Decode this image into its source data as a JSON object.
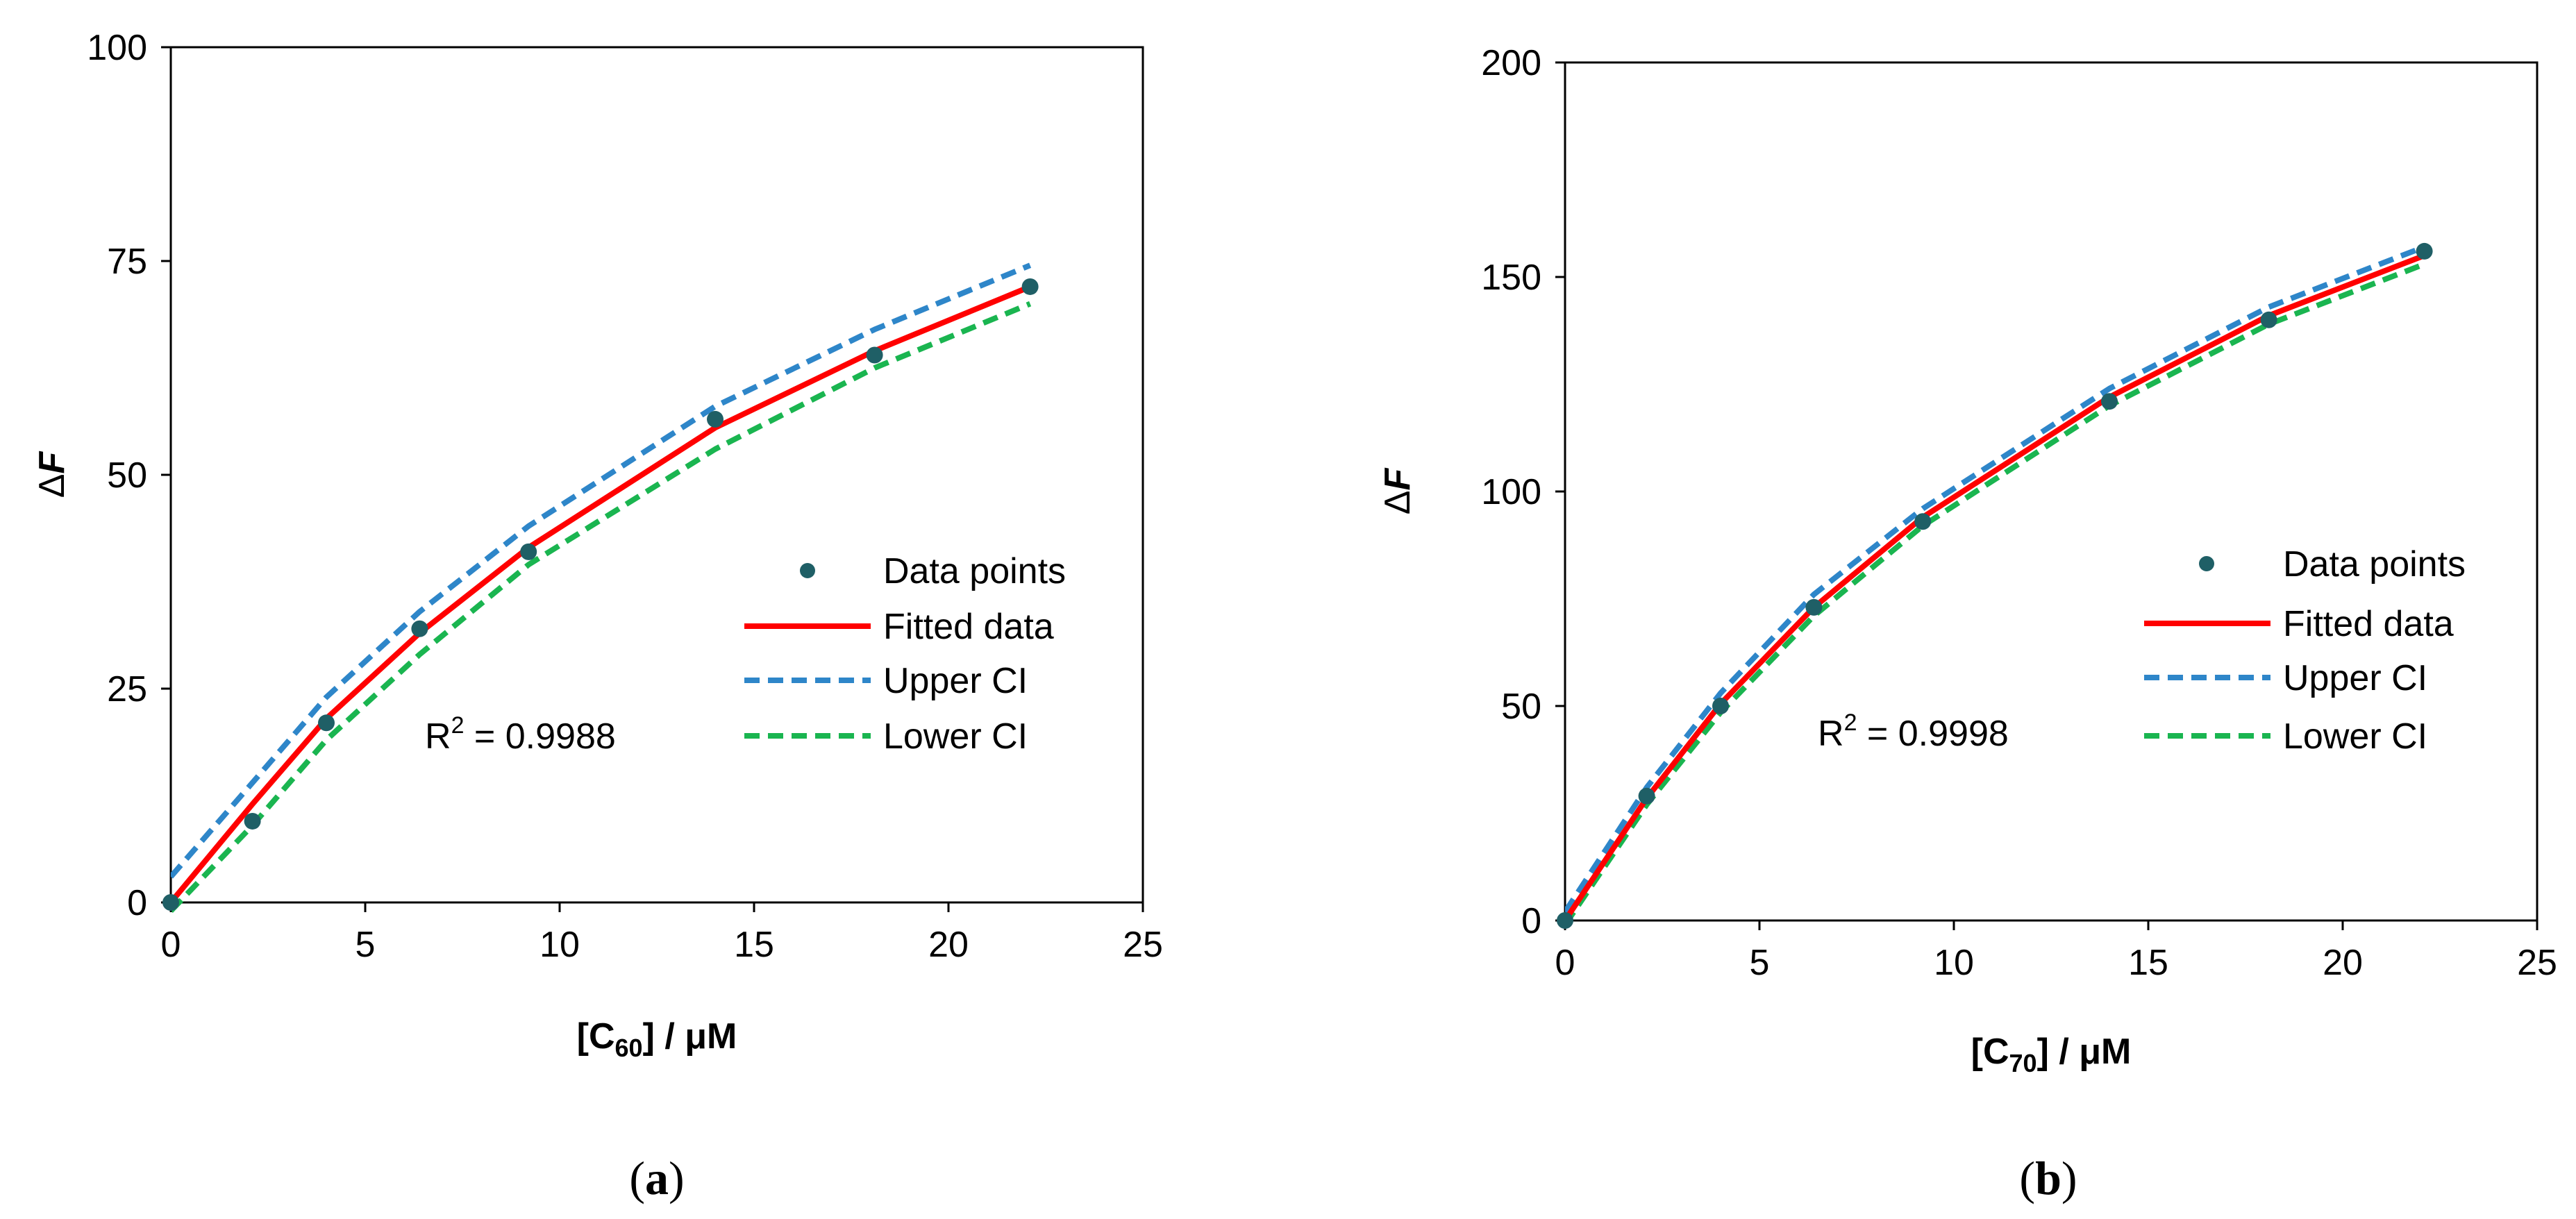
{
  "chart_data": [
    {
      "type": "scatter",
      "panel_label": {
        "open": "(",
        "letter": "a",
        "close": ")"
      },
      "xlabel": {
        "open": "[C",
        "sub": "60",
        "close": "] / μM"
      },
      "ylabel": {
        "delta": "Δ",
        "var": "F"
      },
      "xlim": [
        0,
        25
      ],
      "ylim": [
        0,
        100
      ],
      "xticks": [
        0,
        5,
        10,
        15,
        20,
        25
      ],
      "yticks": [
        0,
        25,
        50,
        75,
        100
      ],
      "r2": {
        "prefix": "R",
        "sup": "2",
        "value": " = 0.9988"
      },
      "legend": {
        "placement": "right",
        "entries": [
          "Data points",
          "Fitted data",
          "Upper CI",
          "Lower CI"
        ]
      },
      "series": [
        {
          "name": "Data points",
          "kind": "markers",
          "color": "#1f5f66",
          "x": [
            0,
            2.1,
            4.0,
            6.4,
            9.2,
            14.0,
            18.1,
            22.1
          ],
          "y": [
            0,
            9.5,
            21,
            32,
            41,
            56.5,
            64,
            72
          ]
        },
        {
          "name": "Fitted data",
          "kind": "solid",
          "color": "#ff0000",
          "x": [
            0,
            2.1,
            4.0,
            6.4,
            9.2,
            14.0,
            18.1,
            22.1
          ],
          "y": [
            0,
            11.5,
            21.5,
            31.5,
            41.5,
            55.5,
            64.5,
            72
          ]
        },
        {
          "name": "Upper CI",
          "kind": "dashed",
          "color": "#2e86c9",
          "x": [
            0,
            2.1,
            4.0,
            6.4,
            9.2,
            14.0,
            18.1,
            22.1
          ],
          "y": [
            3,
            14,
            24,
            34,
            44,
            58,
            67,
            74.5
          ]
        },
        {
          "name": "Lower CI",
          "kind": "dashed",
          "color": "#1ab550",
          "x": [
            0,
            2.1,
            4.0,
            6.4,
            9.2,
            14.0,
            18.1,
            22.1
          ],
          "y": [
            -1,
            9,
            19,
            29,
            39.5,
            53,
            62.5,
            70
          ]
        }
      ]
    },
    {
      "type": "scatter",
      "panel_label": {
        "open": "(",
        "letter": "b",
        "close": ")"
      },
      "xlabel": {
        "open": "[C",
        "sub": "70",
        "close": "] / μM"
      },
      "ylabel": {
        "delta": "Δ",
        "var": "F"
      },
      "xlim": [
        0,
        25
      ],
      "ylim": [
        0,
        200
      ],
      "xticks": [
        0,
        5,
        10,
        15,
        20,
        25
      ],
      "yticks": [
        0,
        50,
        100,
        150,
        200
      ],
      "r2": {
        "prefix": "R",
        "sup": "2",
        "value": " = 0.9998"
      },
      "legend": {
        "placement": "right",
        "entries": [
          "Data points",
          "Fitted data",
          "Upper CI",
          "Lower CI"
        ]
      },
      "series": [
        {
          "name": "Data points",
          "kind": "markers",
          "color": "#1f5f66",
          "x": [
            0,
            2.1,
            4.0,
            6.4,
            9.2,
            14.0,
            18.1,
            22.1
          ],
          "y": [
            0,
            29,
            50,
            73,
            93,
            121,
            140,
            156
          ]
        },
        {
          "name": "Fitted data",
          "kind": "solid",
          "color": "#ff0000",
          "x": [
            0,
            2.1,
            4.0,
            6.4,
            9.2,
            14.0,
            18.1,
            22.1
          ],
          "y": [
            0,
            28.5,
            50.5,
            73,
            94,
            122,
            141,
            155
          ]
        },
        {
          "name": "Upper CI",
          "kind": "dashed",
          "color": "#2e86c9",
          "x": [
            0,
            2.1,
            4.0,
            6.4,
            9.2,
            14.0,
            18.1,
            22.1
          ],
          "y": [
            2,
            31,
            53,
            76,
            96,
            124,
            143,
            157
          ]
        },
        {
          "name": "Lower CI",
          "kind": "dashed",
          "color": "#1ab550",
          "x": [
            0,
            2.1,
            4.0,
            6.4,
            9.2,
            14.0,
            18.1,
            22.1
          ],
          "y": [
            -1,
            27,
            48.5,
            71,
            92,
            120,
            139,
            153
          ]
        }
      ]
    }
  ]
}
